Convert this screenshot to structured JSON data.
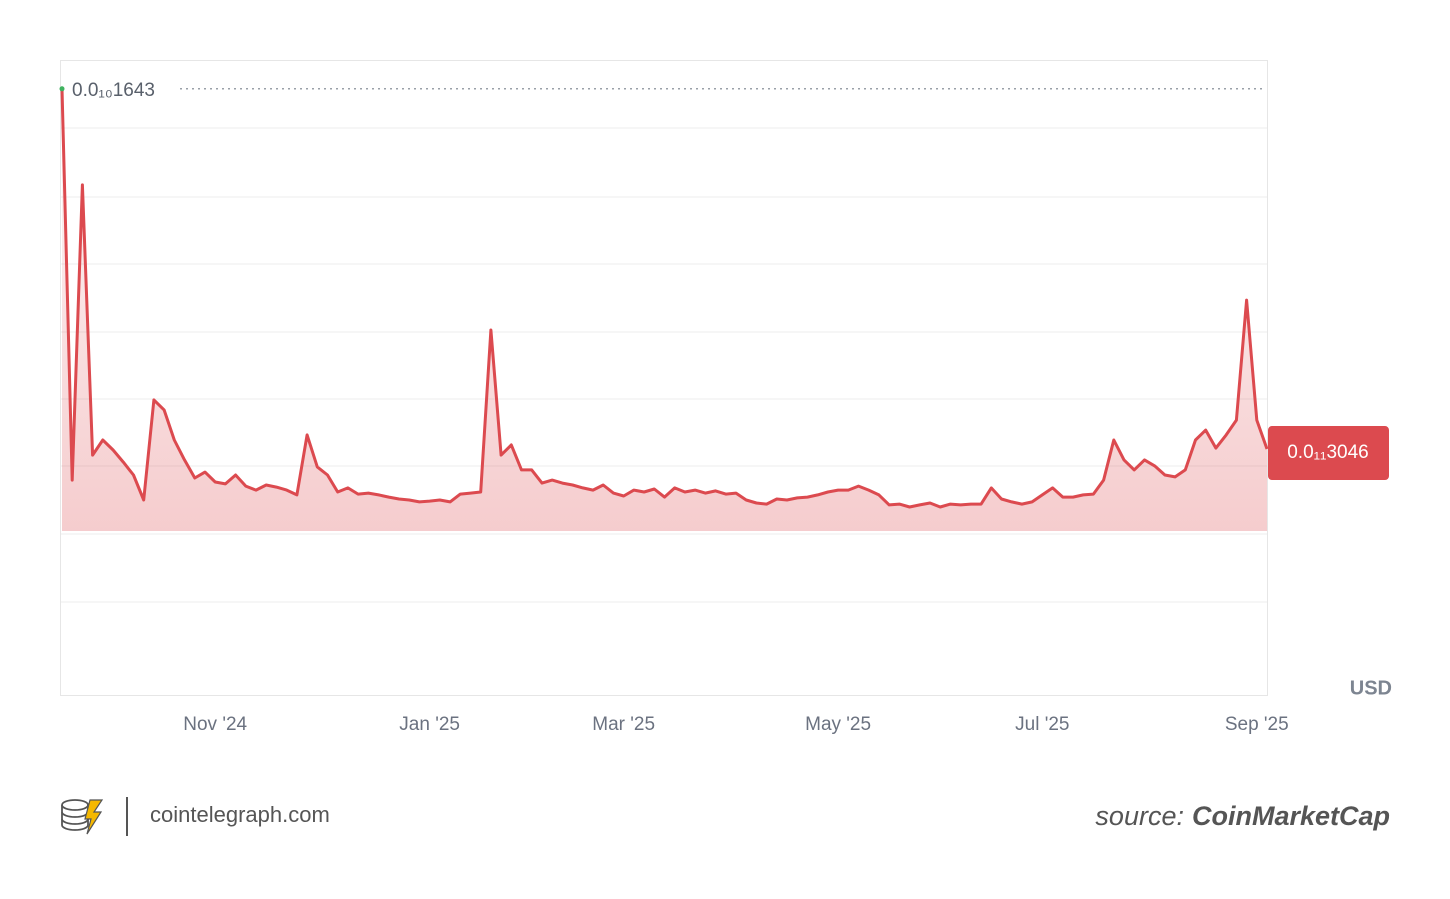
{
  "chart_data": {
    "type": "line",
    "categories": [
      null,
      null,
      null,
      null,
      null,
      null,
      null,
      null,
      null,
      null,
      null,
      null,
      null,
      null,
      null,
      "Nov '24",
      null,
      null,
      null,
      null,
      null,
      null,
      null,
      null,
      null,
      null,
      null,
      null,
      null,
      null,
      null,
      null,
      null,
      null,
      null,
      null,
      "Jan '25",
      null,
      null,
      null,
      null,
      null,
      null,
      null,
      null,
      null,
      null,
      null,
      null,
      null,
      null,
      null,
      null,
      null,
      null,
      "Mar '25",
      null,
      null,
      null,
      null,
      null,
      null,
      null,
      null,
      null,
      null,
      null,
      null,
      null,
      null,
      null,
      null,
      null,
      null,
      null,
      null,
      "May '25",
      null,
      null,
      null,
      null,
      null,
      null,
      null,
      null,
      null,
      null,
      null,
      null,
      null,
      null,
      null,
      null,
      null,
      null,
      null,
      "Jul '25",
      null,
      null,
      null,
      null,
      null,
      null,
      null,
      null,
      null,
      null,
      null,
      null,
      null,
      null,
      null,
      null,
      null,
      null,
      null,
      null,
      "Sep '25",
      null
    ],
    "series": [
      {
        "color": "#dc4a4f",
        "values": [
          1.643e-11,
          1.89e-12,
          1.286e-11,
          2.82e-12,
          3.38e-12,
          3.01e-12,
          2.56e-12,
          2.08e-12,
          1.15e-12,
          4.87e-12,
          4.5e-12,
          3.38e-12,
          2.64e-12,
          1.97e-12,
          2.19e-12,
          1.82e-12,
          1.75e-12,
          2.08e-12,
          1.67e-12,
          1.52e-12,
          1.71e-12,
          1.63e-12,
          1.52e-12,
          1.34e-12,
          3.57e-12,
          2.38e-12,
          2.08e-12,
          1.45e-12,
          1.6e-12,
          1.37e-12,
          1.41e-12,
          1.34e-12,
          1.26e-12,
          1.19e-12,
          1.15e-12,
          1.08e-12,
          1.11e-12,
          1.15e-12,
          1.08e-12,
          1.37e-12,
          1.41e-12,
          1.45e-12,
          7.47e-12,
          2.82e-12,
          3.2e-12,
          2.27e-12,
          2.27e-12,
          1.78e-12,
          1.89e-12,
          1.78e-12,
          1.71e-12,
          1.6e-12,
          1.52e-12,
          1.71e-12,
          1.41e-12,
          1.3e-12,
          1.52e-12,
          1.45e-12,
          1.56e-12,
          1.26e-12,
          1.6e-12,
          1.45e-12,
          1.52e-12,
          1.41e-12,
          1.49e-12,
          1.37e-12,
          1.41e-12,
          1.15e-12,
          1.04e-12,
          1e-12,
          1.19e-12,
          1.15e-12,
          1.23e-12,
          1.26e-12,
          1.34e-12,
          1.45e-12,
          1.52e-12,
          1.52e-12,
          1.67e-12,
          1.52e-12,
          1.34e-12,
          9.7e-13,
          1e-12,
          8.9e-13,
          9.7e-13,
          1.04e-12,
          8.9e-13,
          1e-12,
          9.7e-13,
          1e-12,
          1e-12,
          1.6e-12,
          1.19e-12,
          1.08e-12,
          1e-12,
          1.08e-12,
          1.34e-12,
          1.6e-12,
          1.26e-12,
          1.26e-12,
          1.34e-12,
          1.37e-12,
          1.89e-12,
          3.38e-12,
          2.64e-12,
          2.27e-12,
          2.64e-12,
          2.42e-12,
          2.08e-12,
          2.01e-12,
          2.27e-12,
          3.38e-12,
          3.75e-12,
          3.08e-12,
          3.57e-12,
          4.12e-12,
          8.58e-12,
          4.12e-12,
          3.046e-12
        ]
      }
    ],
    "ylim": [
      0,
      1.75e-11
    ],
    "max_label": {
      "value": 1.643e-11,
      "label": "0.0₁₀1643"
    },
    "last_label": {
      "value": 3.046e-12,
      "label": "0.0₁₁3046"
    },
    "currency": "USD"
  },
  "footer": {
    "site": "cointelegraph.com",
    "source_prefix": "source:",
    "source": "CoinMarketCap"
  }
}
